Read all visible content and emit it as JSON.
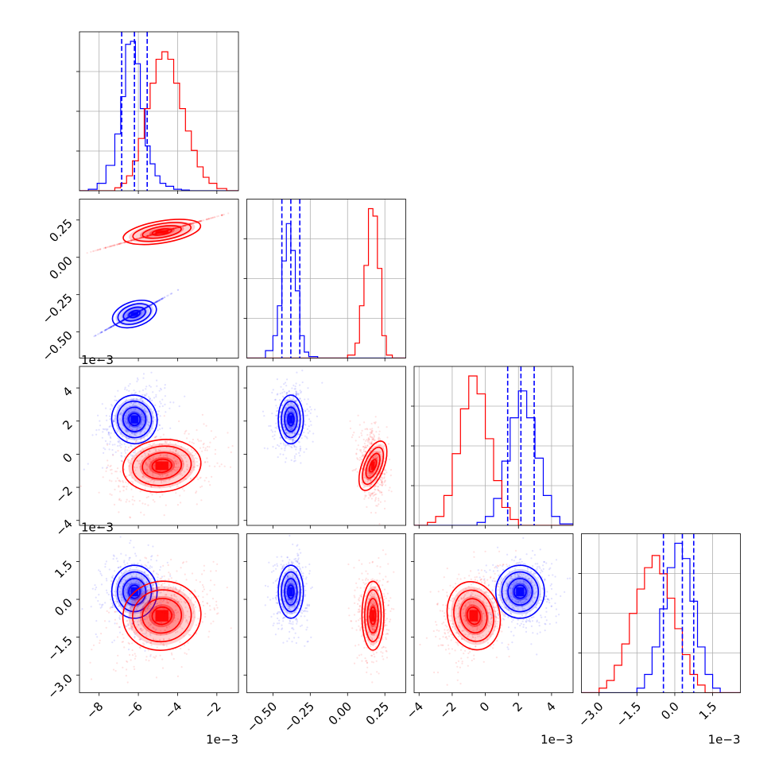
{
  "chart_data": {
    "type": "corner",
    "colors": {
      "series_a": "#0000ff",
      "series_b": "#ff0000"
    },
    "grid": true,
    "parameters": [
      {
        "range": [
          -9.0,
          -0.9
        ],
        "ticks": [
          -8,
          -6,
          -4,
          -2
        ],
        "tick_labels": [
          "−8",
          "−6",
          "−4",
          "−2"
        ],
        "offset": "1e−3"
      },
      {
        "range": [
          -0.675,
          0.39
        ],
        "ticks": [
          -0.5,
          -0.25,
          0.0,
          0.25
        ],
        "tick_labels": [
          "−0.50",
          "−0.25",
          "0.00",
          "0.25"
        ],
        "offset": ""
      },
      {
        "range": [
          -4.3,
          5.3
        ],
        "ticks": [
          -4,
          -2,
          0,
          2,
          4
        ],
        "tick_labels": [
          "−4",
          "−2",
          "0",
          "2",
          "4"
        ],
        "offset": "1e−3"
      },
      {
        "range": [
          -3.7,
          2.6
        ],
        "ticks": [
          -3.0,
          -1.5,
          0.0,
          1.5
        ],
        "tick_labels": [
          "−3.0",
          "−1.5",
          "0.0",
          "1.5"
        ],
        "offset": "1e−3"
      }
    ],
    "series": [
      {
        "key": "series_a",
        "color": "#0000ff",
        "mean": [
          -6.2,
          -0.38,
          2.1,
          0.3
        ],
        "std": [
          0.55,
          0.04,
          0.7,
          0.5
        ],
        "corr": [
          [
            1,
            0.3,
            0
          ],
          [
            0,
            0
          ],
          [
            0
          ]
        ],
        "quantile_lines": [
          [
            -6.85,
            -6.2,
            -5.55
          ],
          [
            -0.44,
            -0.38,
            -0.32
          ],
          [
            1.35,
            2.15,
            2.95
          ],
          [
            -0.45,
            0.3,
            0.75
          ]
        ]
      },
      {
        "key": "series_b",
        "color": "#ff0000",
        "mean": [
          -4.8,
          0.17,
          -0.7,
          -0.65
        ],
        "std": [
          0.95,
          0.035,
          0.75,
          0.65
        ],
        "corr": [
          [
            1,
            0.3,
            0.3
          ],
          [
            -0.3,
            0
          ],
          [
            0.3
          ]
        ],
        "quantile_lines": null
      }
    ],
    "histograms": [
      {
        "param": 0,
        "series": [
          {
            "key": "series_a",
            "bin_edges": [
              -9.0,
              -8.55,
              -8.1,
              -7.65,
              -7.2,
              -6.9,
              -6.65,
              -6.4,
              -6.15,
              -5.9,
              -5.65,
              -5.4,
              -5.15,
              -4.9,
              -4.6,
              -4.2,
              -3.8,
              -3.4,
              -3.0,
              -2.5,
              -1.8,
              -0.9
            ],
            "counts": [
              0,
              0.01,
              0.05,
              0.17,
              0.38,
              0.63,
              0.98,
              1.0,
              0.85,
              0.55,
              0.3,
              0.18,
              0.1,
              0.05,
              0.03,
              0.01,
              0.005,
              0,
              0,
              0,
              0
            ]
          },
          {
            "key": "series_b",
            "bin_edges": [
              -9.0,
              -7.2,
              -6.9,
              -6.6,
              -6.3,
              -6.0,
              -5.7,
              -5.4,
              -5.1,
              -4.8,
              -4.5,
              -4.2,
              -3.9,
              -3.6,
              -3.3,
              -3.0,
              -2.7,
              -2.4,
              -2.0,
              -1.5,
              -0.9
            ],
            "counts": [
              0,
              0.02,
              0.05,
              0.1,
              0.2,
              0.35,
              0.55,
              0.72,
              0.88,
              0.93,
              0.88,
              0.72,
              0.55,
              0.4,
              0.27,
              0.16,
              0.09,
              0.05,
              0.015,
              0
            ]
          }
        ]
      },
      {
        "param": 1,
        "series": [
          {
            "key": "series_a",
            "bin_edges": [
              -0.675,
              -0.55,
              -0.5,
              -0.47,
              -0.44,
              -0.41,
              -0.38,
              -0.35,
              -0.32,
              -0.29,
              -0.26,
              -0.2,
              -0.1,
              0.39
            ],
            "counts": [
              0,
              0.05,
              0.15,
              0.35,
              0.65,
              0.9,
              0.72,
              0.45,
              0.15,
              0.04,
              0.01,
              0,
              0
            ]
          },
          {
            "key": "series_b",
            "bin_edges": [
              -0.675,
              0.0,
              0.05,
              0.08,
              0.11,
              0.14,
              0.17,
              0.2,
              0.23,
              0.26,
              0.3,
              0.39
            ],
            "counts": [
              0,
              0.02,
              0.1,
              0.35,
              0.62,
              1.0,
              0.95,
              0.6,
              0.15,
              0.02,
              0
            ]
          }
        ]
      },
      {
        "param": 2,
        "series": [
          {
            "key": "series_a",
            "bin_edges": [
              -4.3,
              -0.5,
              0.0,
              0.5,
              1.0,
              1.5,
              2.0,
              2.5,
              3.0,
              3.5,
              4.0,
              4.5,
              5.3
            ],
            "counts": [
              0,
              0.02,
              0.06,
              0.18,
              0.43,
              0.72,
              0.9,
              0.72,
              0.45,
              0.2,
              0.06,
              0.01
            ]
          },
          {
            "key": "series_b",
            "bin_edges": [
              -4.3,
              -3.5,
              -3.0,
              -2.5,
              -2.0,
              -1.5,
              -1.0,
              -0.5,
              0.0,
              0.5,
              1.0,
              1.5,
              2.0,
              5.3
            ],
            "counts": [
              0,
              0.02,
              0.06,
              0.2,
              0.48,
              0.78,
              1.0,
              0.88,
              0.58,
              0.3,
              0.12,
              0.04,
              0
            ]
          }
        ]
      },
      {
        "param": 3,
        "series": [
          {
            "key": "series_a",
            "bin_edges": [
              -3.7,
              -1.5,
              -1.2,
              -0.9,
              -0.6,
              -0.3,
              0.0,
              0.3,
              0.6,
              0.9,
              1.2,
              1.5,
              1.8,
              2.6
            ],
            "counts": [
              0,
              0.03,
              0.12,
              0.3,
              0.55,
              0.82,
              0.98,
              0.88,
              0.6,
              0.3,
              0.12,
              0.03,
              0
            ]
          },
          {
            "key": "series_b",
            "bin_edges": [
              -3.7,
              -3.0,
              -2.7,
              -2.4,
              -2.1,
              -1.8,
              -1.5,
              -1.2,
              -0.9,
              -0.6,
              -0.3,
              0.0,
              0.3,
              0.6,
              0.9,
              1.2,
              2.6
            ],
            "counts": [
              0,
              0.03,
              0.08,
              0.18,
              0.32,
              0.52,
              0.68,
              0.82,
              0.9,
              0.78,
              0.62,
              0.42,
              0.25,
              0.12,
              0.05,
              0
            ]
          }
        ]
      }
    ],
    "contour_levels_sigma": [
      0.5,
      1.0,
      1.5,
      2.0
    ]
  }
}
